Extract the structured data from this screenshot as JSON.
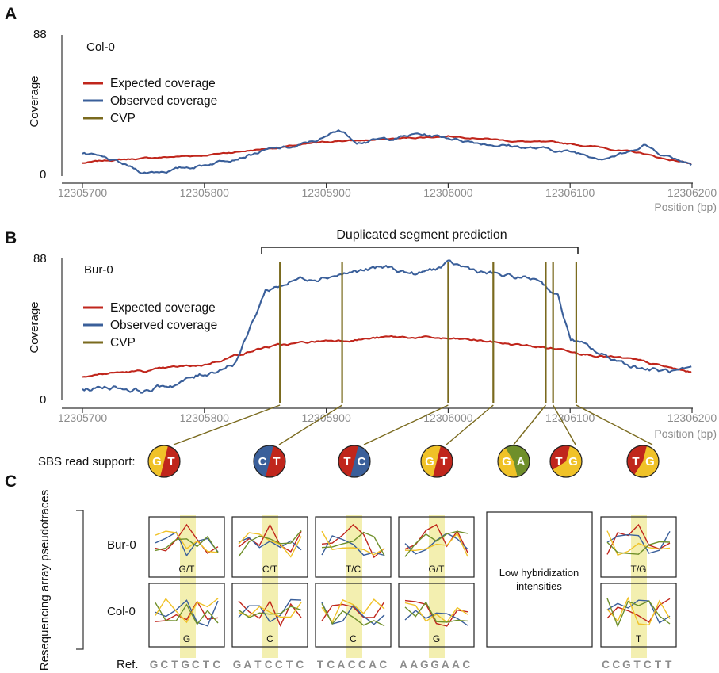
{
  "colors": {
    "expected": "#c0261c",
    "observed": "#3a5f9a",
    "cvp": "#7a6a1e",
    "base_G": "#f0c228",
    "base_T": "#c0261c",
    "base_C": "#3a5f9a",
    "base_A": "#6f8f2a",
    "highlight": "#f3efb0"
  },
  "panels": {
    "A": {
      "letter": "A",
      "sample": "Col-0",
      "ylabel": "Coverage",
      "ymax_label": "88",
      "ymin_label": "0",
      "xlabel": "Position (bp)"
    },
    "B": {
      "letter": "B",
      "sample": "Bur-0",
      "ylabel": "Coverage",
      "ymax_label": "88",
      "ymin_label": "0",
      "xlabel": "Position (bp)",
      "segment_label": "Duplicated segment prediction"
    },
    "C": {
      "letter": "C",
      "row_group_label": "Resequencing array pseudotraces",
      "row1": "Bur-0",
      "row2": "Col-0",
      "low_label_1": "Low hybridization",
      "low_label_2": "intensities",
      "ref_label": "Ref."
    }
  },
  "legend": {
    "expected": "Expected coverage",
    "observed": "Observed coverage",
    "cvp": "CVP"
  },
  "x_ticks": [
    "12305700",
    "12305800",
    "12305900",
    "12306000",
    "12306100",
    "12306200"
  ],
  "sbs_label": "SBS read support:",
  "pies": [
    {
      "left": "G",
      "right": "T",
      "left_color": "#f0c228",
      "right_color": "#c0261c",
      "split": 0.5
    },
    {
      "left": "C",
      "right": "T",
      "left_color": "#3a5f9a",
      "right_color": "#c0261c",
      "split": 0.5
    },
    {
      "left": "T",
      "right": "C",
      "left_color": "#c0261c",
      "right_color": "#3a5f9a",
      "split": 0.5
    },
    {
      "left": "G",
      "right": "T",
      "left_color": "#f0c228",
      "right_color": "#c0261c",
      "split": 0.5
    },
    {
      "left": "G",
      "right": "A",
      "left_color": "#f0c228",
      "right_color": "#6f8f2a",
      "split": 0.55
    },
    {
      "left": "T",
      "right": "G",
      "left_color": "#c0261c",
      "right_color": "#f0c228",
      "split": 0.62
    },
    {
      "left": "T",
      "right": "G",
      "left_color": "#c0261c",
      "right_color": "#f0c228",
      "split": 0.55
    }
  ],
  "boxes": [
    {
      "top_label": "G/T",
      "bottom_label": "G",
      "ref": "GCTGCTC"
    },
    {
      "top_label": "C/T",
      "bottom_label": "C",
      "ref": "GATCCTC"
    },
    {
      "top_label": "T/C",
      "bottom_label": "C",
      "ref": "TCACCAC"
    },
    {
      "top_label": "G/T",
      "bottom_label": "G",
      "ref": "AAGGAAC"
    },
    {
      "top_label": "",
      "bottom_label": "",
      "ref": ""
    },
    {
      "top_label": "T/G",
      "bottom_label": "T",
      "ref": "CCGTCTT"
    }
  ],
  "chart_data": [
    {
      "type": "line",
      "title": "Col-0",
      "ylabel": "Coverage",
      "xlabel": "Position (bp)",
      "xlim": [
        12305700,
        12306200
      ],
      "ylim": [
        0,
        88
      ],
      "x": [
        12305700,
        12305725,
        12305750,
        12305775,
        12305800,
        12305825,
        12305850,
        12305875,
        12305900,
        12305910,
        12305925,
        12305950,
        12305975,
        12306000,
        12306025,
        12306050,
        12306075,
        12306100,
        12306125,
        12306150,
        12306160,
        12306175,
        12306200
      ],
      "series": [
        {
          "name": "Expected coverage",
          "values": [
            8,
            10,
            11,
            12,
            13,
            15,
            17,
            19,
            21,
            22,
            22,
            23,
            24,
            25,
            24,
            22,
            21,
            20,
            18,
            15,
            14,
            11,
            8
          ]
        },
        {
          "name": "Observed coverage",
          "values": [
            14,
            9,
            2,
            4,
            7,
            12,
            16,
            18,
            24,
            29,
            22,
            23,
            26,
            24,
            21,
            19,
            17,
            15,
            12,
            15,
            20,
            14,
            8
          ]
        }
      ]
    },
    {
      "type": "line",
      "title": "Bur-0",
      "ylabel": "Coverage",
      "xlabel": "Position (bp)",
      "xlim": [
        12305700,
        12306200
      ],
      "ylim": [
        0,
        88
      ],
      "x": [
        12305700,
        12305725,
        12305750,
        12305775,
        12305800,
        12305825,
        12305835,
        12305850,
        12305875,
        12305900,
        12305925,
        12305950,
        12305975,
        12306000,
        12306025,
        12306050,
        12306075,
        12306090,
        12306100,
        12306125,
        12306150,
        12306175,
        12306200
      ],
      "series": [
        {
          "name": "Expected coverage",
          "values": [
            15,
            17,
            18,
            20,
            22,
            28,
            30,
            33,
            35,
            37,
            38,
            39,
            39,
            38,
            37,
            35,
            33,
            32,
            31,
            28,
            25,
            21,
            17
          ]
        },
        {
          "name": "Observed coverage",
          "values": [
            7,
            9,
            6,
            10,
            16,
            24,
            40,
            68,
            75,
            78,
            80,
            82,
            78,
            84,
            80,
            76,
            75,
            65,
            38,
            28,
            22,
            18,
            17
          ]
        }
      ],
      "cvp_positions": [
        12305862,
        12305913,
        12306000,
        12306037,
        12306080,
        12306086,
        12306105
      ],
      "duplicated_segment": [
        12305845,
        12306107
      ]
    }
  ]
}
